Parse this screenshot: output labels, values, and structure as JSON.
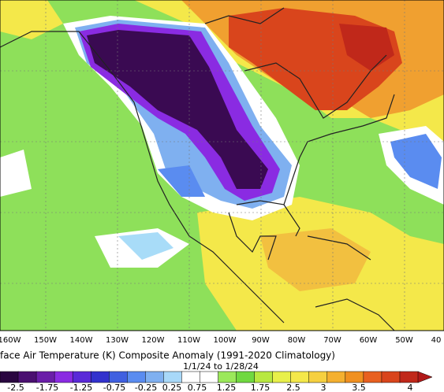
{
  "map": {
    "longitude_labels": [
      "160W",
      "150W",
      "140W",
      "130W",
      "120W",
      "110W",
      "100W",
      "90W",
      "80W",
      "70W",
      "60W",
      "50W",
      "40"
    ],
    "title": "face Air Temperature (K) Composite Anomaly (1991-2020 Climatology)",
    "date_range": "1/1/24 to 1/28/24",
    "colorbar_labels": [
      "-2.5",
      "-1.75",
      "-1.25",
      "-0.75",
      "-0.25",
      "0.25",
      "0.75",
      "1.25",
      "1.75",
      "2.5",
      "3",
      "3.5",
      "4"
    ]
  }
}
